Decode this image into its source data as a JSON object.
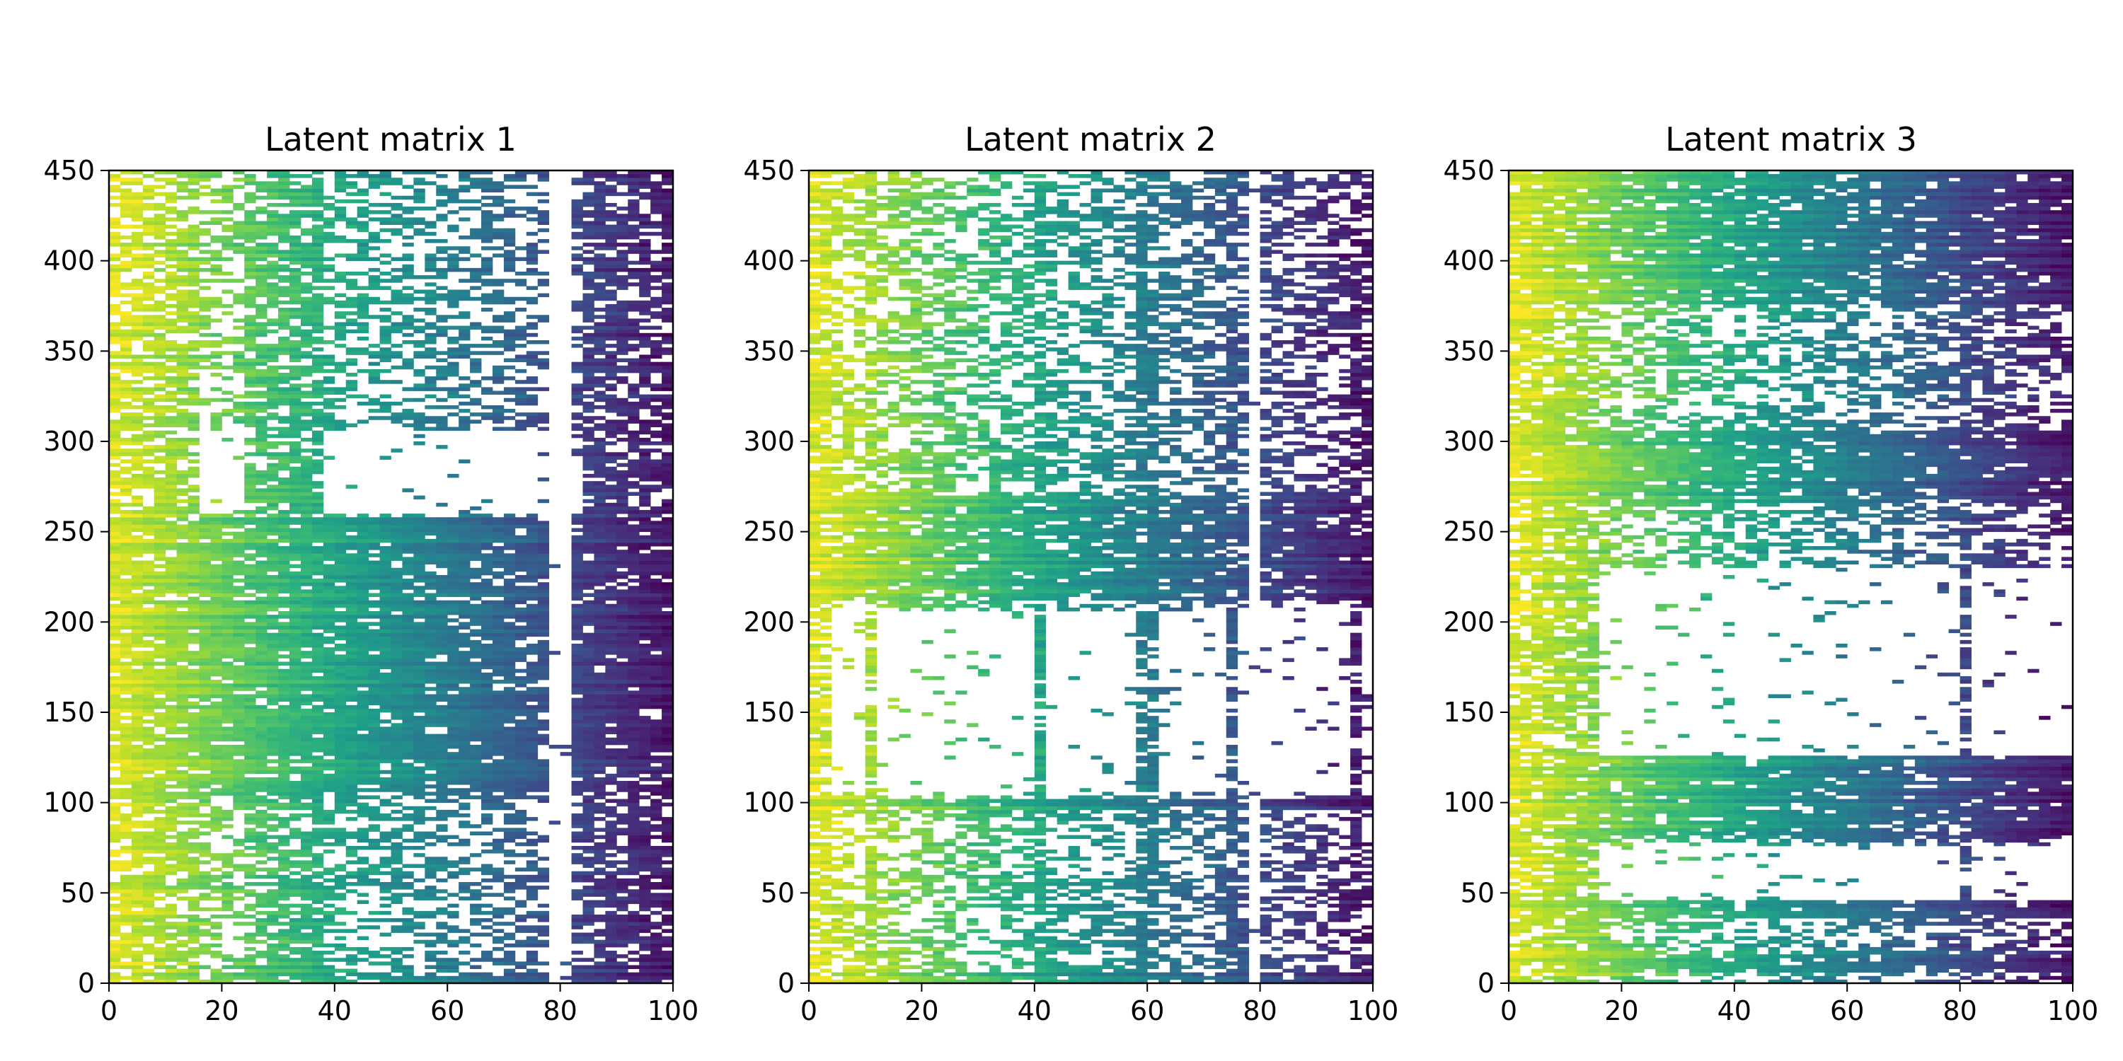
{
  "figure": {
    "layout": "1 row x 3 panels"
  },
  "chart_data": [
    {
      "type": "heatmap",
      "title": "Latent matrix 1",
      "xlabel": "",
      "ylabel": "",
      "xlim": [
        0,
        100
      ],
      "ylim": [
        0,
        450
      ],
      "xticks": [
        0,
        20,
        40,
        60,
        80,
        100
      ],
      "yticks": [
        0,
        50,
        100,
        150,
        200,
        250,
        300,
        350,
        400,
        450
      ],
      "colormap": [
        "#fde725",
        "#b5de2b",
        "#6ece58",
        "#35b779",
        "#1f9e89",
        "#26828e",
        "#31688e",
        "#3e4989",
        "#482878",
        "#440154"
      ],
      "color_trend": "values decrease from left (yellow-green) to right (dark purple); many cells missing (white)",
      "dense_rows": [
        [
          0,
          5
        ],
        [
          105,
          212
        ],
        [
          213,
          258
        ]
      ],
      "sparse_rows": [
        [
          260,
          305
        ]
      ],
      "dense_columns": [
        [
          0,
          12
        ],
        [
          12,
          16
        ],
        [
          24,
          38
        ],
        [
          63,
          64
        ],
        [
          84,
          100
        ]
      ],
      "empty_columns": [
        [
          78,
          82
        ]
      ]
    },
    {
      "type": "heatmap",
      "title": "Latent matrix 2",
      "xlabel": "",
      "ylabel": "",
      "xlim": [
        0,
        100
      ],
      "ylim": [
        0,
        450
      ],
      "xticks": [
        0,
        20,
        40,
        60,
        80,
        100
      ],
      "yticks": [
        0,
        50,
        100,
        150,
        200,
        250,
        300,
        350,
        400,
        450
      ],
      "colormap": [
        "#fde725",
        "#b5de2b",
        "#6ece58",
        "#35b779",
        "#1f9e89",
        "#26828e",
        "#31688e",
        "#3e4989",
        "#482878",
        "#440154"
      ],
      "color_trend": "values decrease from left (yellow-green) to right (dark purple); mostly filled",
      "dense_rows": [
        [
          0,
          5
        ],
        [
          212,
          270
        ],
        [
          96,
          102
        ]
      ],
      "sparse_rows": [
        [
          105,
          205
        ]
      ],
      "dense_columns": [
        [
          0,
          3
        ],
        [
          10,
          12
        ],
        [
          40,
          42
        ],
        [
          58,
          62
        ],
        [
          73,
          75
        ],
        [
          95,
          97
        ]
      ],
      "empty_columns": [
        [
          78,
          80
        ]
      ]
    },
    {
      "type": "heatmap",
      "title": "Latent matrix 3",
      "xlabel": "",
      "ylabel": "",
      "xlim": [
        0,
        100
      ],
      "ylim": [
        0,
        450
      ],
      "xticks": [
        0,
        20,
        40,
        60,
        80,
        100
      ],
      "yticks": [
        0,
        50,
        100,
        150,
        200,
        250,
        300,
        350,
        400,
        450
      ],
      "colormap": [
        "#fde725",
        "#b5de2b",
        "#6ece58",
        "#35b779",
        "#1f9e89",
        "#26828e",
        "#31688e",
        "#3e4989",
        "#482878",
        "#440154"
      ],
      "color_trend": "values decrease from left (yellow-green) to right (dark purple); large empty band",
      "dense_rows": [
        [
          265,
          305
        ],
        [
          375,
          450
        ],
        [
          80,
          125
        ],
        [
          35,
          45
        ],
        [
          5,
          18
        ]
      ],
      "sparse_rows": [
        [
          125,
          230
        ],
        [
          45,
          75
        ]
      ],
      "dense_columns": [
        [
          0,
          15
        ],
        [
          79,
          82
        ]
      ],
      "empty_columns": []
    }
  ]
}
